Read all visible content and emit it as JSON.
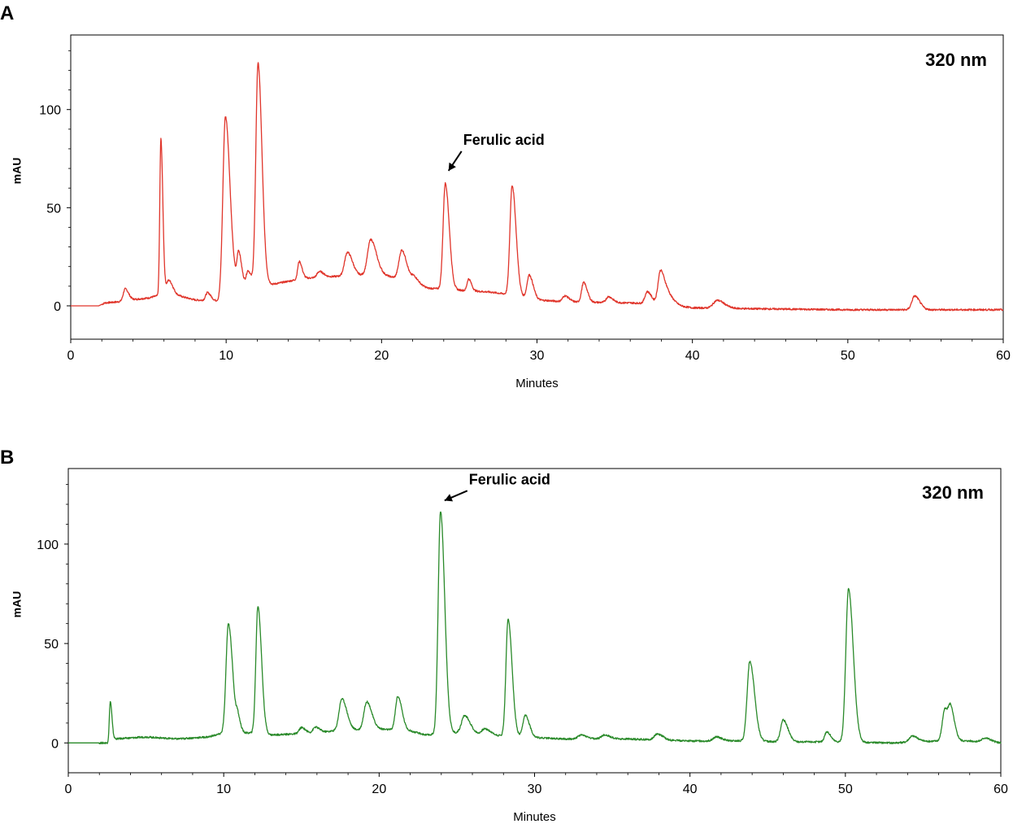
{
  "chart_data": [
    {
      "type": "line",
      "panel": "A",
      "xlabel": "Minutes",
      "ylabel": "mAU",
      "xlim": [
        0,
        60
      ],
      "ylim": [
        -17,
        138
      ],
      "xticks": [
        0,
        10,
        20,
        30,
        40,
        50,
        60
      ],
      "yticks": [
        0,
        50,
        100
      ],
      "wavelength_label": "320 nm",
      "line_color": "#e0352b",
      "grid": false,
      "annotation": {
        "text": "Ferulic acid",
        "x": 24.1,
        "y": 63
      },
      "baseline": [
        [
          0,
          0
        ],
        [
          1.8,
          0
        ],
        [
          2.2,
          1.5
        ],
        [
          3,
          2
        ],
        [
          3.8,
          3
        ],
        [
          5,
          4
        ],
        [
          5.5,
          5
        ],
        [
          7,
          5
        ],
        [
          8,
          3
        ],
        [
          9.5,
          2.5
        ],
        [
          10.5,
          11
        ],
        [
          11.5,
          12
        ],
        [
          13,
          11
        ],
        [
          15,
          14
        ],
        [
          17,
          15
        ],
        [
          20,
          16
        ],
        [
          22,
          12
        ],
        [
          23,
          9
        ],
        [
          25,
          8
        ],
        [
          27,
          7
        ],
        [
          28,
          6
        ],
        [
          30,
          3
        ],
        [
          32,
          2
        ],
        [
          36,
          1.5
        ],
        [
          38,
          1
        ],
        [
          40,
          -1
        ],
        [
          44,
          -1.5
        ],
        [
          50,
          -2
        ],
        [
          56,
          -2
        ],
        [
          60,
          -2
        ]
      ],
      "peaks": [
        {
          "rt": 3.5,
          "h": 6,
          "w": 0.12
        },
        {
          "rt": 5.8,
          "h": 80,
          "w": 0.07
        },
        {
          "rt": 6.3,
          "h": 8,
          "w": 0.15
        },
        {
          "rt": 8.8,
          "h": 4,
          "w": 0.12
        },
        {
          "rt": 9.95,
          "h": 90,
          "w": 0.16
        },
        {
          "rt": 10.8,
          "h": 16,
          "w": 0.1
        },
        {
          "rt": 11.4,
          "h": 6,
          "w": 0.1
        },
        {
          "rt": 12.05,
          "h": 112,
          "w": 0.14
        },
        {
          "rt": 14.7,
          "h": 9,
          "w": 0.1
        },
        {
          "rt": 16,
          "h": 3,
          "w": 0.15
        },
        {
          "rt": 17.8,
          "h": 12,
          "w": 0.18
        },
        {
          "rt": 19.3,
          "h": 18,
          "w": 0.2
        },
        {
          "rt": 21.3,
          "h": 15,
          "w": 0.18
        },
        {
          "rt": 22.1,
          "h": 3,
          "w": 0.15
        },
        {
          "rt": 24.1,
          "h": 54,
          "w": 0.14
        },
        {
          "rt": 25.6,
          "h": 6,
          "w": 0.1
        },
        {
          "rt": 28.4,
          "h": 56,
          "w": 0.14
        },
        {
          "rt": 29.5,
          "h": 12,
          "w": 0.14
        },
        {
          "rt": 31.8,
          "h": 3,
          "w": 0.15
        },
        {
          "rt": 33,
          "h": 10,
          "w": 0.13
        },
        {
          "rt": 34.6,
          "h": 3,
          "w": 0.15
        },
        {
          "rt": 37.1,
          "h": 6,
          "w": 0.15
        },
        {
          "rt": 37.95,
          "h": 17,
          "w": 0.16
        },
        {
          "rt": 38.5,
          "h": 4,
          "w": 0.2
        },
        {
          "rt": 41.6,
          "h": 4,
          "w": 0.25
        },
        {
          "rt": 54.3,
          "h": 7,
          "w": 0.18
        }
      ]
    },
    {
      "type": "line",
      "panel": "B",
      "xlabel": "Minutes",
      "ylabel": "mAU",
      "xlim": [
        0,
        60
      ],
      "ylim": [
        -15,
        138
      ],
      "xticks": [
        0,
        10,
        20,
        30,
        40,
        50,
        60
      ],
      "yticks": [
        0,
        50,
        100
      ],
      "wavelength_label": "320 nm",
      "line_color": "#2a8a2a",
      "grid": false,
      "annotation": {
        "text": "Ferulic acid",
        "x": 24.0,
        "y": 117
      },
      "baseline": [
        [
          0,
          0
        ],
        [
          2.5,
          0
        ],
        [
          3,
          2
        ],
        [
          5,
          3
        ],
        [
          7,
          2
        ],
        [
          9,
          3
        ],
        [
          10,
          5
        ],
        [
          12,
          5
        ],
        [
          13,
          4
        ],
        [
          16,
          5
        ],
        [
          17,
          6
        ],
        [
          20,
          7
        ],
        [
          22,
          6
        ],
        [
          23,
          4
        ],
        [
          25,
          5
        ],
        [
          27,
          4
        ],
        [
          29,
          3
        ],
        [
          32,
          2
        ],
        [
          36,
          2
        ],
        [
          40,
          1
        ],
        [
          44,
          1
        ],
        [
          46,
          0.5
        ],
        [
          50,
          0.5
        ],
        [
          53,
          0
        ],
        [
          56,
          1
        ],
        [
          58,
          1
        ],
        [
          60,
          0
        ]
      ],
      "peaks": [
        {
          "rt": 2.7,
          "h": 20,
          "w": 0.06
        },
        {
          "rt": 10.3,
          "h": 55,
          "w": 0.15
        },
        {
          "rt": 10.9,
          "h": 7,
          "w": 0.1
        },
        {
          "rt": 12.2,
          "h": 64,
          "w": 0.13
        },
        {
          "rt": 15,
          "h": 3,
          "w": 0.15
        },
        {
          "rt": 15.9,
          "h": 3,
          "w": 0.15
        },
        {
          "rt": 17.6,
          "h": 16,
          "w": 0.18
        },
        {
          "rt": 19.2,
          "h": 14,
          "w": 0.18
        },
        {
          "rt": 21.2,
          "h": 17,
          "w": 0.15
        },
        {
          "rt": 23.95,
          "h": 112,
          "w": 0.15
        },
        {
          "rt": 25.5,
          "h": 9,
          "w": 0.2
        },
        {
          "rt": 26.8,
          "h": 3,
          "w": 0.2
        },
        {
          "rt": 28.3,
          "h": 59,
          "w": 0.14
        },
        {
          "rt": 29.4,
          "h": 11,
          "w": 0.15
        },
        {
          "rt": 33,
          "h": 2,
          "w": 0.2
        },
        {
          "rt": 34.5,
          "h": 2,
          "w": 0.2
        },
        {
          "rt": 37.9,
          "h": 3,
          "w": 0.2
        },
        {
          "rt": 41.7,
          "h": 2,
          "w": 0.2
        },
        {
          "rt": 43.85,
          "h": 40,
          "w": 0.17
        },
        {
          "rt": 46,
          "h": 11,
          "w": 0.17
        },
        {
          "rt": 48.8,
          "h": 5,
          "w": 0.14
        },
        {
          "rt": 50.2,
          "h": 77,
          "w": 0.17
        },
        {
          "rt": 54.3,
          "h": 3,
          "w": 0.2
        },
        {
          "rt": 56.4,
          "h": 16,
          "w": 0.16
        },
        {
          "rt": 56.8,
          "h": 12,
          "w": 0.14
        },
        {
          "rt": 59,
          "h": 2,
          "w": 0.2
        }
      ]
    }
  ]
}
